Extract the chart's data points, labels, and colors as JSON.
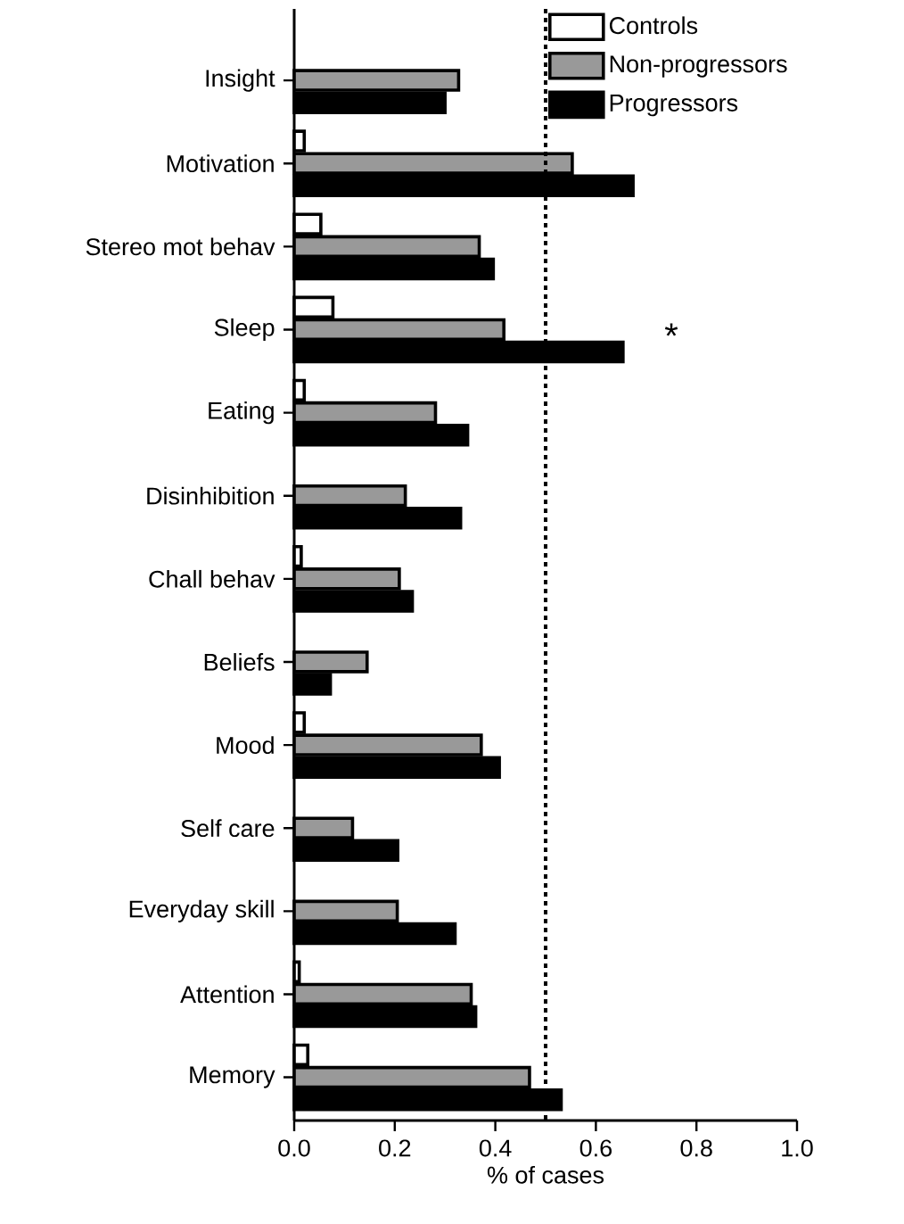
{
  "chart_data": {
    "type": "bar",
    "orientation": "horizontal",
    "xlabel": "% of cases",
    "categories": [
      "Insight",
      "Motivation",
      "Stereo mot behav",
      "Sleep",
      "Eating",
      "Disinhibition",
      "Chall behav",
      "Beliefs",
      "Mood",
      "Self care",
      "Everyday skill",
      "Attention",
      "Memory"
    ],
    "series": [
      {
        "name": "Controls",
        "color": "#ffffff",
        "values": [
          0,
          0.02,
          0.053,
          0.077,
          0.02,
          0,
          0.014,
          0,
          0.02,
          0,
          0,
          0.01,
          0.027
        ]
      },
      {
        "name": "Non-progressors",
        "color": "#999999",
        "values": [
          0.327,
          0.553,
          0.368,
          0.417,
          0.281,
          0.221,
          0.209,
          0.145,
          0.372,
          0.116,
          0.205,
          0.352,
          0.468
        ]
      },
      {
        "name": "Progressors",
        "color": "#000000",
        "values": [
          0.3,
          0.674,
          0.396,
          0.654,
          0.345,
          0.331,
          0.235,
          0.072,
          0.408,
          0.206,
          0.32,
          0.361,
          0.531
        ]
      }
    ],
    "xlim": [
      0,
      1
    ],
    "xticks": [
      {
        "value": 0,
        "label": "0.0"
      },
      {
        "value": 0.2,
        "label": "0.2"
      },
      {
        "value": 0.4,
        "label": "0.4"
      },
      {
        "value": 0.6,
        "label": "0.6"
      },
      {
        "value": 0.8,
        "label": "0.8"
      },
      {
        "value": 1,
        "label": "1.0"
      }
    ],
    "ref_lines": [
      {
        "axis": "x",
        "value": 0.5,
        "line_style": "dotted"
      }
    ],
    "annotations": [
      "*"
    ],
    "legend": "top right",
    "grid": false
  }
}
